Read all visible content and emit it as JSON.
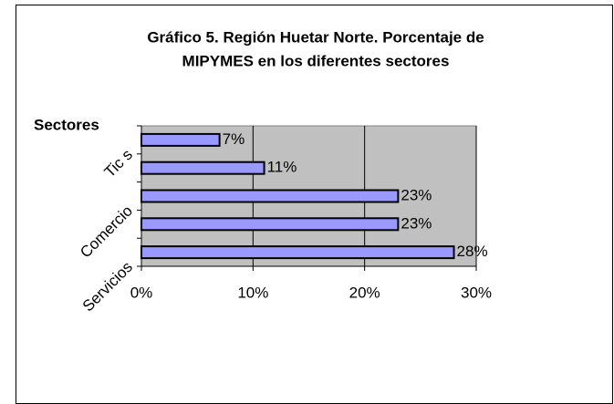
{
  "chart_data": {
    "type": "bar",
    "orientation": "horizontal",
    "title": "Gráfico 5. Región Huetar Norte. Porcentaje de MIPYMES en los diferentes sectores",
    "y_label": "Sectores",
    "categories": [
      "Servicios",
      null,
      "Comercio",
      null,
      "Tic s"
    ],
    "values": [
      28,
      23,
      23,
      11,
      7
    ],
    "value_labels": [
      "28%",
      "23%",
      "23%",
      "11%",
      "7%"
    ],
    "color": "#9999ff",
    "xlim": [
      0,
      30
    ],
    "xticks": [
      {
        "value": 0,
        "label": "0%"
      },
      {
        "value": 10,
        "label": "10%"
      },
      {
        "value": 20,
        "label": "20%"
      },
      {
        "value": 30,
        "label": "30%"
      }
    ],
    "grid": true
  }
}
